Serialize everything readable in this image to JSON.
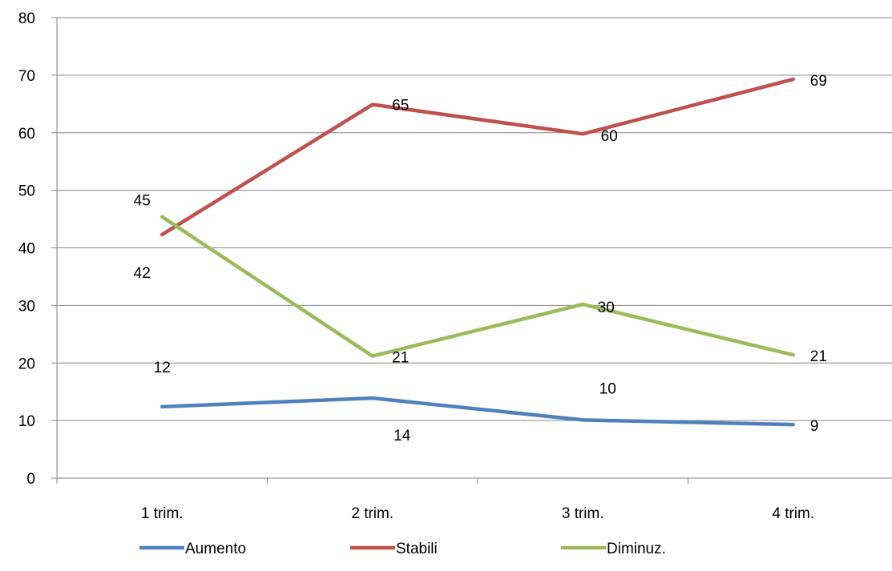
{
  "chart_data": {
    "type": "line",
    "title": "",
    "xlabel": "",
    "ylabel": "",
    "categories": [
      "1 trim.",
      "2 trim.",
      "3 trim.",
      "4 trim."
    ],
    "ylim": [
      0,
      80
    ],
    "yticks": [
      0,
      10,
      20,
      30,
      40,
      50,
      60,
      70,
      80
    ],
    "grid": "horizontal",
    "legend_position": "bottom",
    "series": [
      {
        "name": "Aumento",
        "color": "#4F81BD",
        "values": [
          12.4,
          13.9,
          10.1,
          9.3
        ],
        "labels": [
          "12",
          "14",
          "10",
          "9"
        ]
      },
      {
        "name": "Stabili",
        "color": "#C0504D",
        "values": [
          42.3,
          64.9,
          59.8,
          69.3
        ],
        "labels": [
          "42",
          "65",
          "60",
          "69"
        ]
      },
      {
        "name": "Diminuz.",
        "color": "#9BBB59",
        "values": [
          45.4,
          21.2,
          30.2,
          21.4
        ],
        "labels": [
          "45",
          "21",
          "30",
          "21"
        ]
      }
    ]
  }
}
